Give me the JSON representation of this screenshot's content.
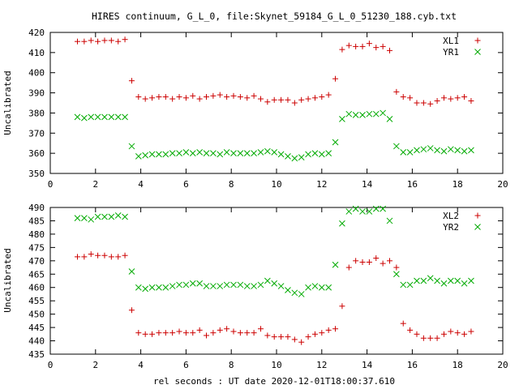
{
  "page": {
    "title": "HIRES continuum, G_L_0, file:Skynet_59184_G_L_0_51230_188.cyb.txt",
    "xlabel": "rel seconds : UT date 2020-12-01T18:00:37.610"
  },
  "chart_data": [
    {
      "type": "scatter",
      "ylabel": "Uncalibrated",
      "xlim": [
        0,
        20
      ],
      "ylim": [
        350,
        420
      ],
      "xticks": [
        0,
        2,
        4,
        6,
        8,
        10,
        12,
        14,
        16,
        18,
        20
      ],
      "yticks": [
        350,
        360,
        370,
        380,
        390,
        400,
        410,
        420
      ],
      "grid": false,
      "legend_position": "top-right",
      "series": [
        {
          "name": "XL1",
          "marker": "plus",
          "color": "#cc0000",
          "x": [
            1.2,
            1.5,
            1.8,
            2.1,
            2.4,
            2.7,
            3.0,
            3.3,
            3.6,
            3.9,
            4.2,
            4.5,
            4.8,
            5.1,
            5.4,
            5.7,
            6.0,
            6.3,
            6.6,
            6.9,
            7.2,
            7.5,
            7.8,
            8.1,
            8.4,
            8.7,
            9.0,
            9.3,
            9.6,
            9.9,
            10.2,
            10.5,
            10.8,
            11.1,
            11.4,
            11.7,
            12.0,
            12.3,
            12.6,
            12.9,
            13.2,
            13.5,
            13.8,
            14.1,
            14.4,
            14.7,
            15.0,
            15.3,
            15.6,
            15.9,
            16.2,
            16.5,
            16.8,
            17.1,
            17.4,
            17.7,
            18.0,
            18.3,
            18.6
          ],
          "y": [
            415.5,
            415.5,
            416,
            415.5,
            416,
            416,
            415.5,
            416.5,
            396,
            388,
            387,
            387.5,
            388,
            388,
            387,
            388,
            387.5,
            388.5,
            387,
            388,
            388.5,
            389,
            388,
            388.5,
            388,
            387.5,
            388.5,
            387,
            385.5,
            386.5,
            386.5,
            386.5,
            385,
            386.5,
            387,
            387.5,
            388,
            389,
            397,
            411.5,
            413.5,
            413,
            413,
            414.5,
            412.5,
            413,
            411,
            390.5,
            388,
            387.5,
            385,
            385,
            384.5,
            386,
            387.5,
            387,
            387.5,
            388,
            386
          ]
        },
        {
          "name": "YR1",
          "marker": "cross",
          "color": "#00aa00",
          "x": [
            1.2,
            1.5,
            1.8,
            2.1,
            2.4,
            2.7,
            3.0,
            3.3,
            3.6,
            3.9,
            4.2,
            4.5,
            4.8,
            5.1,
            5.4,
            5.7,
            6.0,
            6.3,
            6.6,
            6.9,
            7.2,
            7.5,
            7.8,
            8.1,
            8.4,
            8.7,
            9.0,
            9.3,
            9.6,
            9.9,
            10.2,
            10.5,
            10.8,
            11.1,
            11.4,
            11.7,
            12.0,
            12.3,
            12.6,
            12.9,
            13.2,
            13.5,
            13.8,
            14.1,
            14.4,
            14.7,
            15.0,
            15.3,
            15.6,
            15.9,
            16.2,
            16.5,
            16.8,
            17.1,
            17.4,
            17.7,
            18.0,
            18.3,
            18.6
          ],
          "y": [
            378,
            377.5,
            378,
            378,
            378,
            378,
            378,
            378,
            363.5,
            358.5,
            359,
            359.5,
            359.5,
            359.5,
            360,
            360,
            360.5,
            360,
            360.5,
            360,
            360,
            359.5,
            360.5,
            360,
            360,
            360,
            360,
            360.5,
            361,
            360.5,
            359.5,
            358.5,
            357.5,
            358,
            359.5,
            360,
            359.5,
            360,
            365.5,
            377,
            379.5,
            379,
            379,
            379.5,
            379.5,
            380,
            377,
            363.5,
            360.5,
            360.5,
            361.5,
            362,
            362.5,
            361.5,
            361,
            362,
            361.5,
            361,
            361.5
          ]
        }
      ]
    },
    {
      "type": "scatter",
      "ylabel": "Uncalibrated",
      "xlim": [
        0,
        20
      ],
      "ylim": [
        435,
        490
      ],
      "xticks": [
        0,
        2,
        4,
        6,
        8,
        10,
        12,
        14,
        16,
        18,
        20
      ],
      "yticks": [
        435,
        440,
        445,
        450,
        455,
        460,
        465,
        470,
        475,
        480,
        485,
        490
      ],
      "grid": false,
      "legend_position": "top-right",
      "series": [
        {
          "name": "XL2",
          "marker": "plus",
          "color": "#cc0000",
          "x": [
            1.2,
            1.5,
            1.8,
            2.1,
            2.4,
            2.7,
            3.0,
            3.3,
            3.6,
            3.9,
            4.2,
            4.5,
            4.8,
            5.1,
            5.4,
            5.7,
            6.0,
            6.3,
            6.6,
            6.9,
            7.2,
            7.5,
            7.8,
            8.1,
            8.4,
            8.7,
            9.0,
            9.3,
            9.6,
            9.9,
            10.2,
            10.5,
            10.8,
            11.1,
            11.4,
            11.7,
            12.0,
            12.3,
            12.6,
            12.9,
            13.2,
            13.5,
            13.8,
            14.1,
            14.4,
            14.7,
            15.0,
            15.3,
            15.6,
            15.9,
            16.2,
            16.5,
            16.8,
            17.1,
            17.4,
            17.7,
            18.0,
            18.3,
            18.6
          ],
          "y": [
            471.5,
            471.5,
            472.5,
            472,
            472,
            471.5,
            471.5,
            472,
            451.5,
            443,
            442.5,
            442.5,
            443,
            443,
            443,
            443.5,
            443,
            443,
            444,
            442,
            443,
            444,
            444.5,
            443.5,
            443,
            443,
            443,
            444.5,
            442,
            441.5,
            441.5,
            441.5,
            440.5,
            439.5,
            441.5,
            442.5,
            443,
            444,
            444.5,
            453,
            467.5,
            470,
            469.5,
            469.5,
            471,
            469,
            470,
            467.5,
            446.5,
            444,
            442.5,
            441,
            441,
            441,
            442.5,
            443.5,
            443,
            442.5,
            443.5
          ]
        },
        {
          "name": "YR2",
          "marker": "cross",
          "color": "#00aa00",
          "x": [
            1.2,
            1.5,
            1.8,
            2.1,
            2.4,
            2.7,
            3.0,
            3.3,
            3.6,
            3.9,
            4.2,
            4.5,
            4.8,
            5.1,
            5.4,
            5.7,
            6.0,
            6.3,
            6.6,
            6.9,
            7.2,
            7.5,
            7.8,
            8.1,
            8.4,
            8.7,
            9.0,
            9.3,
            9.6,
            9.9,
            10.2,
            10.5,
            10.8,
            11.1,
            11.4,
            11.7,
            12.0,
            12.3,
            12.6,
            12.9,
            13.2,
            13.5,
            13.8,
            14.1,
            14.4,
            14.7,
            15.0,
            15.3,
            15.6,
            15.9,
            16.2,
            16.5,
            16.8,
            17.1,
            17.4,
            17.7,
            18.0,
            18.3,
            18.6
          ],
          "y": [
            486,
            486,
            485.5,
            486.5,
            486.5,
            486.5,
            487,
            486.5,
            466,
            460,
            459.5,
            460,
            460,
            460,
            460.5,
            461,
            461,
            461.5,
            461.5,
            460.5,
            460.5,
            460.5,
            461,
            461,
            461,
            460.5,
            460.5,
            461,
            462.5,
            461.5,
            460.5,
            459,
            458,
            457.5,
            460,
            460.5,
            460,
            460,
            468.5,
            484,
            488.5,
            489.5,
            488.5,
            488.5,
            489.5,
            489.5,
            485,
            465,
            461,
            461,
            462.5,
            462.5,
            463.5,
            462.5,
            461.5,
            462.5,
            462.5,
            461.5,
            462.5
          ]
        }
      ]
    }
  ]
}
